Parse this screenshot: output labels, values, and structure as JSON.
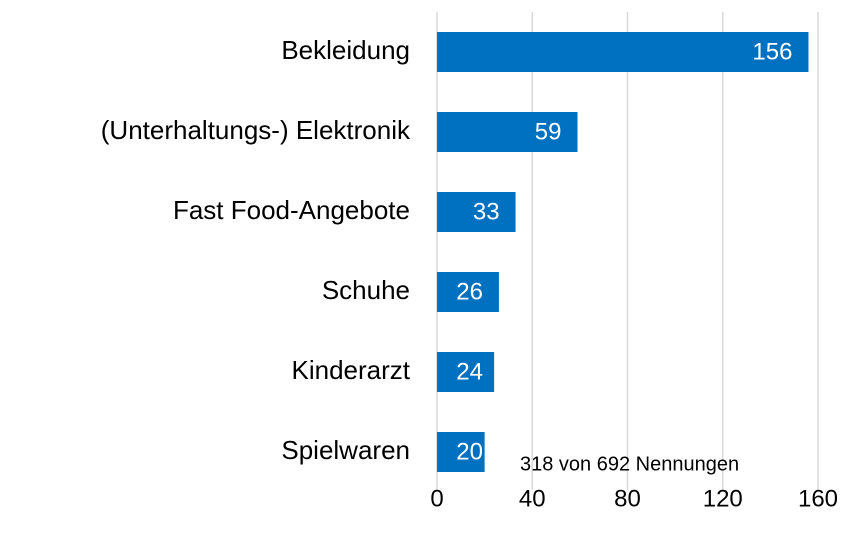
{
  "chart_data": {
    "type": "bar",
    "orientation": "horizontal",
    "categories": [
      "Bekleidung",
      "(Unterhaltungs-) Elektronik",
      "Fast Food-Angebote",
      "Schuhe",
      "Kinderarzt",
      "Spielwaren"
    ],
    "values": [
      156,
      59,
      33,
      26,
      24,
      20
    ],
    "color": "#0070c0",
    "xlim": [
      0,
      160
    ],
    "xticks": [
      0,
      40,
      80,
      120,
      160
    ],
    "grid": true,
    "annotation": "318 von 692 Nennungen"
  }
}
